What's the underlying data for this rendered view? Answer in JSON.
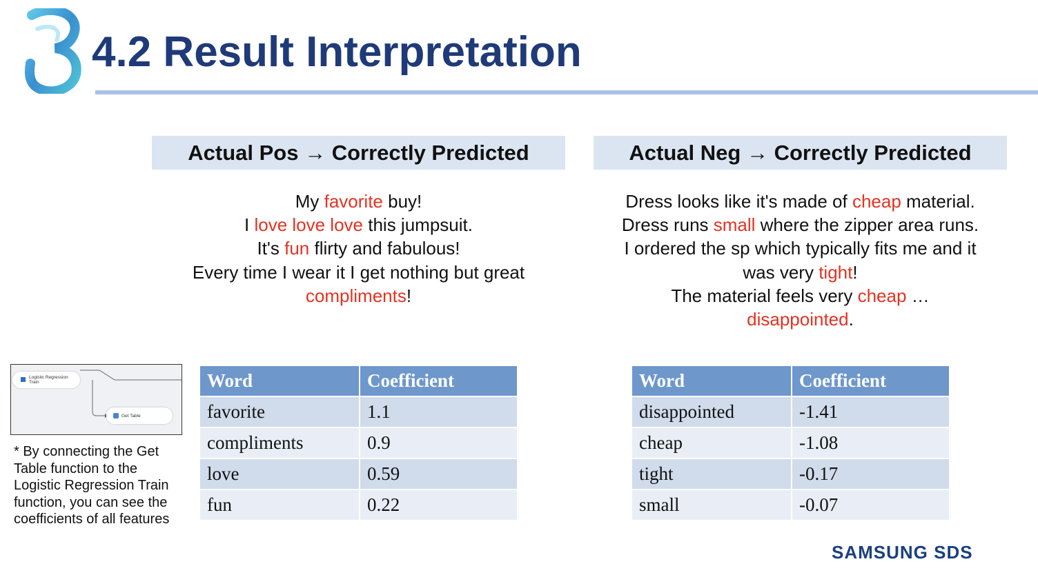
{
  "slide": {
    "title": "4.2 Result Interpretation",
    "brand": "SAMSUNG SDS",
    "colors": {
      "title": "#1f3a78",
      "highlight": "#e53222",
      "header_band": "#dbe5f1",
      "table_header": "#6e97cc"
    }
  },
  "positive": {
    "heading": "Actual Pos → Correctly Predicted",
    "review": [
      [
        {
          "t": "My "
        },
        {
          "t": "favorite",
          "hl": true
        },
        {
          "t": " buy!"
        }
      ],
      [
        {
          "t": "I "
        },
        {
          "t": "love love love",
          "hl": true
        },
        {
          "t": " this jumpsuit."
        }
      ],
      [
        {
          "t": "It's "
        },
        {
          "t": "fun",
          "hl": true
        },
        {
          "t": " flirty and fabulous!"
        }
      ],
      [
        {
          "t": "Every time I wear it I get nothing but great"
        }
      ],
      [
        {
          "t": "compliments",
          "hl": true
        },
        {
          "t": "!"
        }
      ]
    ],
    "table": {
      "headers": [
        "Word",
        "Coefficient"
      ],
      "rows": [
        [
          "favorite",
          "1.1"
        ],
        [
          "compliments",
          "0.9"
        ],
        [
          "love",
          "0.59"
        ],
        [
          "fun",
          "0.22"
        ]
      ]
    }
  },
  "negative": {
    "heading": "Actual Neg → Correctly Predicted",
    "review": [
      [
        {
          "t": "Dress looks like it's made of "
        },
        {
          "t": "cheap",
          "hl": true
        },
        {
          "t": " material."
        }
      ],
      [
        {
          "t": "Dress runs "
        },
        {
          "t": "small",
          "hl": true
        },
        {
          "t": " where the zipper area runs."
        }
      ],
      [
        {
          "t": "I ordered the sp which typically fits me and it"
        }
      ],
      [
        {
          "t": "was very "
        },
        {
          "t": "tight",
          "hl": true
        },
        {
          "t": "!"
        }
      ],
      [
        {
          "t": "The material feels very "
        },
        {
          "t": "cheap",
          "hl": true
        },
        {
          "t": " …"
        }
      ],
      [
        {
          "t": "disappointed",
          "hl": true
        },
        {
          "t": "."
        }
      ]
    ],
    "table": {
      "headers": [
        "Word",
        "Coefficient"
      ],
      "rows": [
        [
          "disappointed",
          "-1.41"
        ],
        [
          "cheap",
          "-1.08"
        ],
        [
          "tight",
          "-0.17"
        ],
        [
          "small",
          "-0.07"
        ]
      ]
    }
  },
  "workflow_thumb": {
    "node1_label": "Logistic Regression Train",
    "node2_label": "Get Table"
  },
  "note": "* By connecting the Get Table function to the Logistic Regression Train function, you can see the coefficients of all features"
}
